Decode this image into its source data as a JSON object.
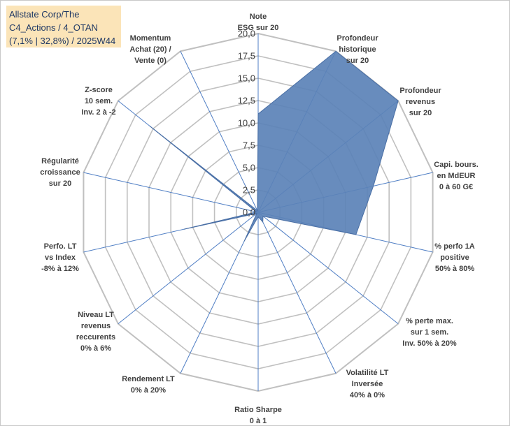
{
  "title_lines": [
    "Allstate Corp/The",
    "C4_Actions / 4_OTAN",
    "(7,1% | 32,8%) / 2025W44"
  ],
  "colors": {
    "fill": "#5b82b7",
    "stroke": "#4a6fa5",
    "grid": "#c0c0c0",
    "spoke": "#4f7ec4",
    "title_bg": "#fbe4b8",
    "title_text": "#1f3864"
  },
  "chart_data": {
    "type": "radar",
    "rmin": 0,
    "rmax": 20,
    "ticks": [
      "0,0",
      "2,5",
      "5,0",
      "7,5",
      "10,0",
      "12,5",
      "15,0",
      "17,5",
      "20,0"
    ],
    "tick_values": [
      0,
      2.5,
      5,
      7.5,
      10,
      12.5,
      15,
      17.5,
      20
    ],
    "series": [
      {
        "name": "Allstate Corp/The",
        "values": [
          11,
          20,
          20,
          13.2,
          11.2,
          0.7,
          1.2,
          0.5,
          3.6,
          0.2,
          8.5,
          0.2,
          15.5,
          0.2
        ]
      }
    ],
    "axes": [
      [
        "Note",
        "ESG sur 20"
      ],
      [
        "Profondeur",
        "historique",
        "sur 20"
      ],
      [
        "Profondeur",
        "revenus",
        "sur 20"
      ],
      [
        "Capi. bours.",
        "en MdEUR",
        "0 à 60 G€"
      ],
      [
        "% perfo 1A",
        "positive",
        "50% à 80%"
      ],
      [
        "% perte max.",
        "sur 1 sem.",
        "Inv. 50% à 20%"
      ],
      [
        "Volatilité LT",
        "Inversée",
        "40% à 0%"
      ],
      [
        "Ratio Sharpe",
        "0 à 1"
      ],
      [
        "Rendement LT",
        "0% à 20%"
      ],
      [
        "Niveau LT",
        "revenus",
        "reccurents",
        "0% à 6%"
      ],
      [
        "Perfo. LT",
        "vs Index",
        "-8% à 12%"
      ],
      [
        "Régularité",
        "croissance",
        "sur 20"
      ],
      [
        "Z-score",
        "10 sem.",
        "Inv. 2 à -2"
      ],
      [
        "Momentum",
        "Achat (20) /",
        "Vente (0)"
      ]
    ]
  }
}
